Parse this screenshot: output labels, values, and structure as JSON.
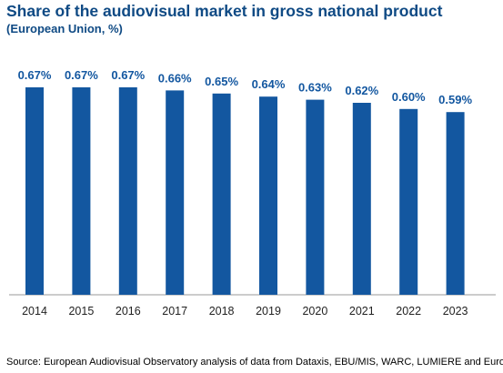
{
  "title": "Share of the audiovisual market in gross national product",
  "subtitle": "(European Union, %)",
  "source": "Source: European Audiovisual Observatory analysis of data from Dataxis, EBU/MIS, WARC, LUMIERE and Eurostat",
  "colors": {
    "bar": "#1357a0",
    "label": "#1357a0",
    "text": "#0f4a84",
    "axis": "#999999"
  },
  "chart_data": {
    "type": "bar",
    "categories": [
      "2014",
      "2015",
      "2016",
      "2017",
      "2018",
      "2019",
      "2020",
      "2021",
      "2022",
      "2023"
    ],
    "values": [
      0.67,
      0.67,
      0.67,
      0.66,
      0.65,
      0.64,
      0.63,
      0.62,
      0.6,
      0.59
    ],
    "data_labels": [
      "0.67%",
      "0.67%",
      "0.67%",
      "0.66%",
      "0.65%",
      "0.64%",
      "0.63%",
      "0.62%",
      "0.60%",
      "0.59%"
    ],
    "title": "Share of the audiovisual market in gross national product",
    "subtitle": "(European Union, %)",
    "ylim": [
      0,
      0.67
    ],
    "grid": false,
    "legend": "none"
  }
}
